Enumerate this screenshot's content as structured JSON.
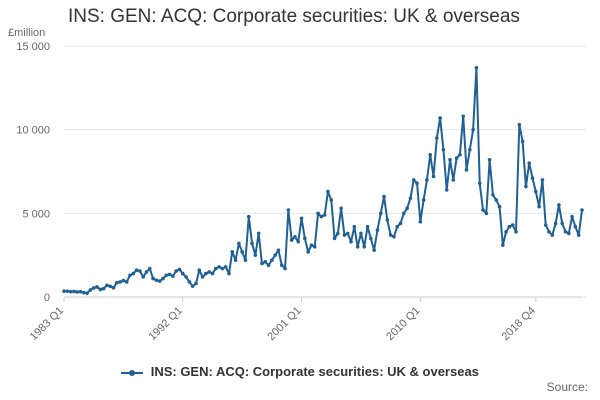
{
  "page": {
    "title": "INS: GEN: ACQ: Corporate securities: UK & overseas",
    "source": "Source:"
  },
  "colors": {
    "series": "#206095",
    "grid": "#e6e6e6",
    "axis_text": "#666666"
  },
  "chart_data": {
    "type": "line",
    "title": "INS: GEN: ACQ: Corporate securities: UK & overseas",
    "ylabel": "£million",
    "ylim": [
      0,
      15000
    ],
    "yticks": [
      0,
      5000,
      10000,
      15000
    ],
    "ytick_labels": [
      "0",
      "5 000",
      "10 000",
      "15 000"
    ],
    "xticks": [
      "1983 Q1",
      "1992 Q1",
      "2001 Q1",
      "2010 Q1",
      "2018 Q4"
    ],
    "grid": true,
    "legend": "bottom-center",
    "series": [
      {
        "name": "INS: GEN: ACQ: Corporate securities: UK & overseas",
        "start": "1983 Q1",
        "end": "2018 Q4",
        "values": [
          350,
          350,
          320,
          330,
          300,
          320,
          260,
          230,
          420,
          540,
          600,
          450,
          500,
          700,
          640,
          550,
          850,
          900,
          980,
          900,
          1300,
          1400,
          1600,
          1550,
          1200,
          1500,
          1700,
          1100,
          1000,
          950,
          1100,
          1300,
          1350,
          1250,
          1550,
          1650,
          1400,
          1200,
          900,
          650,
          800,
          1600,
          1200,
          1400,
          1500,
          1400,
          1700,
          1800,
          1700,
          1800,
          1400,
          2700,
          2200,
          3200,
          2700,
          2200,
          4800,
          3200,
          2500,
          3800,
          2000,
          2100,
          1900,
          2200,
          2500,
          2800,
          1900,
          1700,
          5200,
          3400,
          3600,
          3300,
          4700,
          3500,
          2700,
          3100,
          3000,
          5000,
          4800,
          4900,
          6300,
          5800,
          3500,
          3800,
          5300,
          3700,
          3800,
          3300,
          4200,
          3000,
          3800,
          3000,
          4200,
          3500,
          2800,
          4000,
          5000,
          6000,
          4600,
          3700,
          3600,
          4200,
          4400,
          5000,
          5300,
          5900,
          7000,
          6800,
          4500,
          5800,
          7000,
          8500,
          7200,
          9500,
          10700,
          8800,
          6400,
          8200,
          7000,
          8300,
          8500,
          10800,
          7600,
          8800,
          10000,
          13700,
          6800,
          5200,
          5000,
          8200,
          6100,
          5800,
          5400,
          3100,
          3900,
          4200,
          4300,
          3900,
          10300,
          9300,
          6600,
          8000,
          7100,
          6300,
          5400,
          7000,
          4300,
          3900,
          3700,
          4400,
          5500,
          4400,
          3900,
          3800,
          4800,
          4200,
          3700,
          5200
        ]
      }
    ]
  }
}
